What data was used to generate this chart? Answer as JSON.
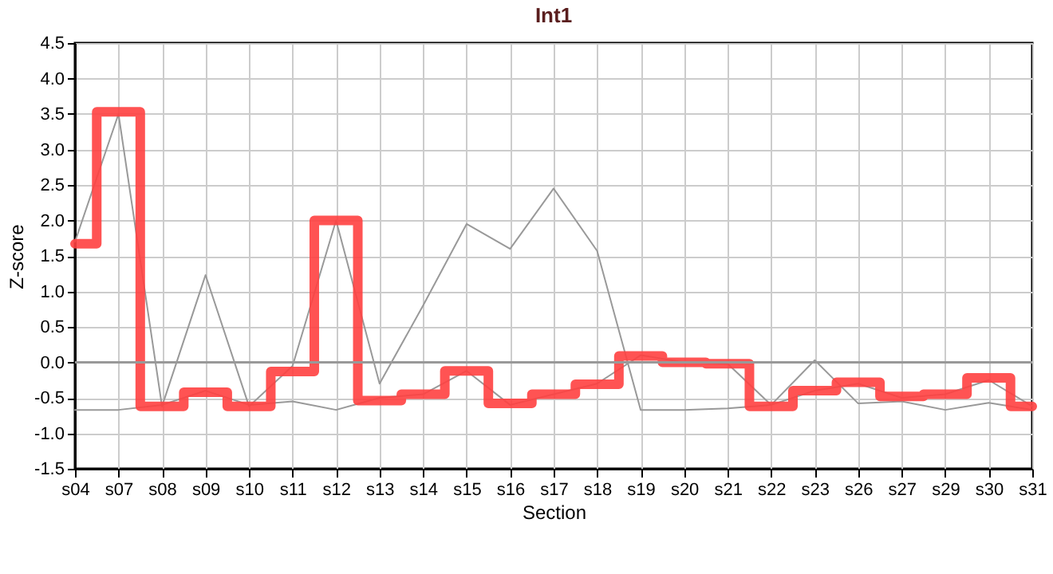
{
  "chart_data": {
    "type": "line",
    "title": "Int1",
    "xlabel": "Section",
    "ylabel": "Z-score",
    "categories": [
      "s04",
      "s07",
      "s08",
      "s09",
      "s10",
      "s11",
      "s12",
      "s13",
      "s14",
      "s15",
      "s16",
      "s17",
      "s18",
      "s19",
      "s20",
      "s21",
      "s22",
      "s23",
      "s26",
      "s27",
      "s29",
      "s30",
      "s31"
    ],
    "series": [
      {
        "type": "line",
        "color": "#999999",
        "values": [
          1.7,
          3.5,
          -0.62,
          1.23,
          -0.62,
          -0.05,
          2.0,
          -0.3,
          0.8,
          1.95,
          1.6,
          2.45,
          1.57,
          -0.67,
          -0.67,
          -0.65,
          -0.6,
          0.03,
          -0.58,
          -0.55,
          -0.67,
          -0.57,
          -0.67
        ]
      },
      {
        "type": "line",
        "color": "#999999",
        "values": [
          -0.67,
          -0.67,
          -0.6,
          -0.4,
          -0.6,
          -0.55,
          -0.67,
          -0.5,
          -0.45,
          -0.12,
          -0.6,
          -0.45,
          -0.3,
          0.1,
          0.0,
          -0.02,
          -0.6,
          -0.4,
          -0.3,
          -0.5,
          -0.45,
          -0.25,
          -0.62
        ]
      },
      {
        "type": "step",
        "color": "#ff4040",
        "values": [
          1.67,
          3.53,
          -0.62,
          -0.42,
          -0.62,
          -0.13,
          2.0,
          -0.54,
          -0.45,
          -0.12,
          -0.58,
          -0.45,
          -0.31,
          0.09,
          0.0,
          -0.02,
          -0.62,
          -0.4,
          -0.28,
          -0.48,
          -0.45,
          -0.22,
          -0.62
        ]
      }
    ],
    "ylim": [
      -1.5,
      4.5
    ],
    "yticks": [
      -1.5,
      {
        "value": -1,
        "label": "-1.0"
      },
      -0.5,
      {
        "value": 0,
        "label": "0.0"
      },
      0.5,
      {
        "value": 1,
        "label": "1.0"
      },
      1.5,
      {
        "value": 2,
        "label": "2.0"
      },
      2.5,
      {
        "value": 3,
        "label": "3.0"
      },
      3.5,
      {
        "value": 4,
        "label": "4.0"
      },
      4.5
    ],
    "ref_lines": [
      {
        "axis": "y",
        "value": 0,
        "color": "#999999"
      }
    ],
    "grid": true,
    "marker": "none"
  }
}
